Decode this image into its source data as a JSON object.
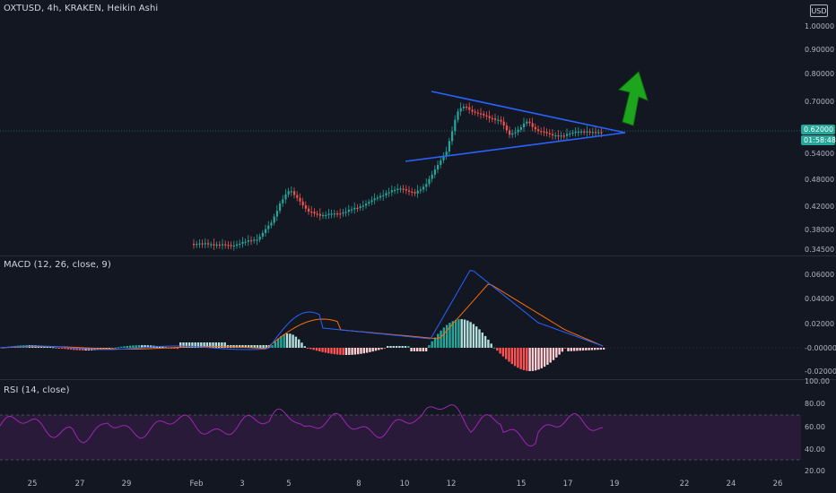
{
  "header": {
    "symbol_title": "OXTUSD, 4h, KRAKEN, Heikin Ashi",
    "currency_button": "USD"
  },
  "main_pane": {
    "price_ticks": [
      "1.00000",
      "0.90000",
      "0.80000",
      "0.70000",
      "0.62000",
      "0.54000",
      "0.48000",
      "0.42000",
      "0.38000",
      "0.34500"
    ],
    "current_price": "0.62000",
    "countdown": "01:58:48",
    "colors": {
      "up": "#26a69a",
      "down": "#ef5350",
      "trendline": "#2962ff",
      "arrow": "#1ea51e",
      "price_tag": "#26a69a"
    },
    "annotations": [
      "symmetrical-triangle",
      "up-arrow"
    ]
  },
  "macd_pane": {
    "title": "MACD (12, 26, close, 9)",
    "ticks": [
      "0.06000",
      "0.04000",
      "0.02000",
      "-0.00000",
      "-0.02000"
    ],
    "colors": {
      "macd": "#2962ff",
      "signal": "#ff6d00"
    }
  },
  "rsi_pane": {
    "title": "RSI (14, close)",
    "ticks": [
      "100.00",
      "80.00",
      "60.00",
      "40.00",
      "20.00"
    ],
    "colors": {
      "line": "#9c27b0",
      "band": "#2a1a3a"
    }
  },
  "time_axis": {
    "labels": [
      "25",
      "27",
      "29",
      "Feb",
      "3",
      "5",
      "8",
      "10",
      "12",
      "15",
      "17",
      "19",
      "22",
      "24",
      "26"
    ]
  }
}
